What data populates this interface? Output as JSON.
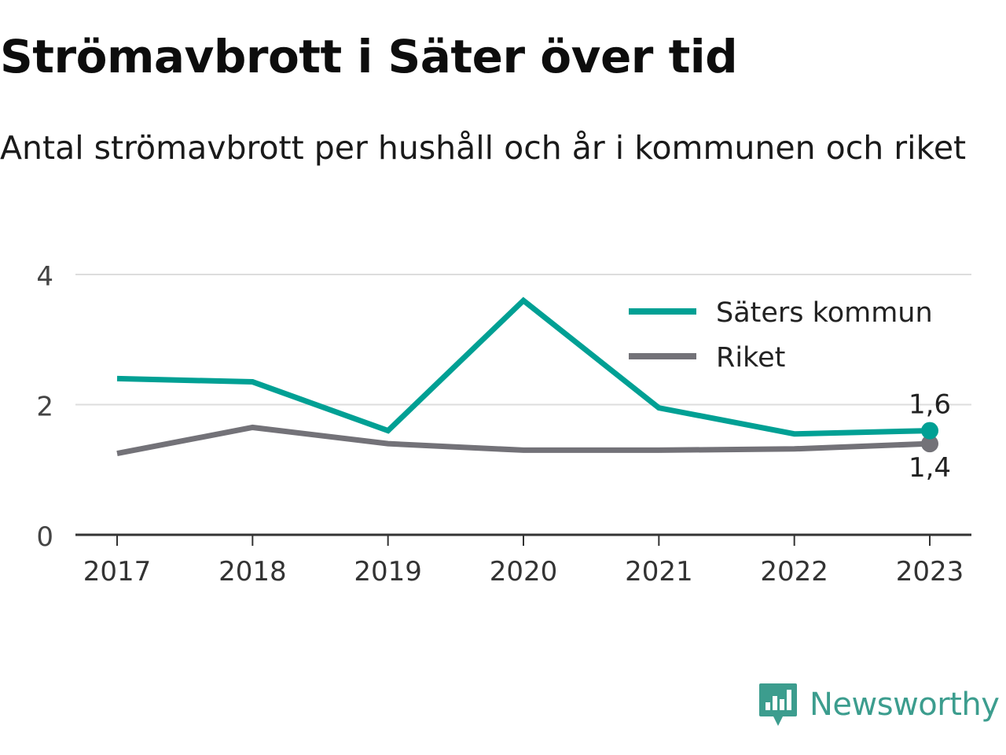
{
  "title": "Strömavbrott i Säter över tid",
  "subtitle": "Antal strömavbrott per hushåll och år i kommunen och riket",
  "brand": {
    "name": "Newsworthy",
    "icon": "newsworthy-logo-icon"
  },
  "colors": {
    "primary": "#00a094",
    "secondary": "#737278",
    "grid": "#dddddd",
    "axis": "#333333",
    "brand": "#3c9d8e"
  },
  "chart_data": {
    "type": "line",
    "x": [
      "2017",
      "2018",
      "2019",
      "2020",
      "2021",
      "2022",
      "2023"
    ],
    "series": [
      {
        "name": "Säters kommun",
        "values": [
          2.4,
          2.35,
          1.6,
          3.6,
          1.95,
          1.55,
          1.6
        ],
        "end_label": "1,6"
      },
      {
        "name": "Riket",
        "values": [
          1.25,
          1.65,
          1.4,
          1.3,
          1.3,
          1.32,
          1.4
        ],
        "end_label": "1,4"
      }
    ],
    "ylim": [
      0,
      4
    ],
    "yticks": [
      {
        "value": 0,
        "label": "0"
      },
      {
        "value": 2,
        "label": "2"
      },
      {
        "value": 4,
        "label": "4"
      }
    ],
    "grid": true,
    "legend": "top-right"
  }
}
